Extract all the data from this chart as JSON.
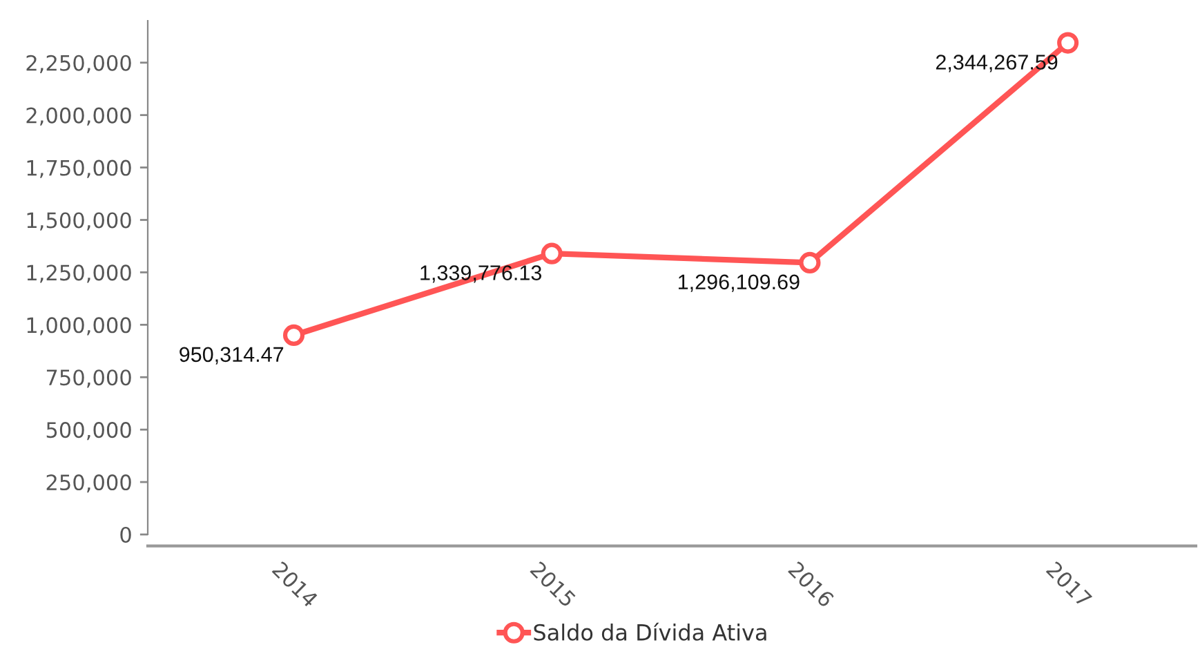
{
  "chart_data": {
    "type": "line",
    "categories": [
      "2014",
      "2015",
      "2016",
      "2017"
    ],
    "series": [
      {
        "name": "Saldo da Dívida Ativa",
        "color": "#ff5555",
        "values": [
          950314.47,
          1339776.13,
          1296109.69,
          2344267.59
        ],
        "value_labels": [
          "950,314.47",
          "1,339,776.13",
          "1,296,109.69",
          "2,344,267.59"
        ]
      }
    ],
    "ylim": [
      0,
      2450000
    ],
    "yticks": [
      {
        "value": 0,
        "label": "0"
      },
      {
        "value": 250000,
        "label": "250,000"
      },
      {
        "value": 500000,
        "label": "500,000"
      },
      {
        "value": 750000,
        "label": "750,000"
      },
      {
        "value": 1000000,
        "label": "1,000,000"
      },
      {
        "value": 1250000,
        "label": "1,250,000"
      },
      {
        "value": 1500000,
        "label": "1,500,000"
      },
      {
        "value": 1750000,
        "label": "1,750,000"
      },
      {
        "value": 2000000,
        "label": "2,000,000"
      },
      {
        "value": 2250000,
        "label": "2,250,000"
      }
    ],
    "legend": "bottom",
    "marker": "circle",
    "line_style": "solid"
  }
}
